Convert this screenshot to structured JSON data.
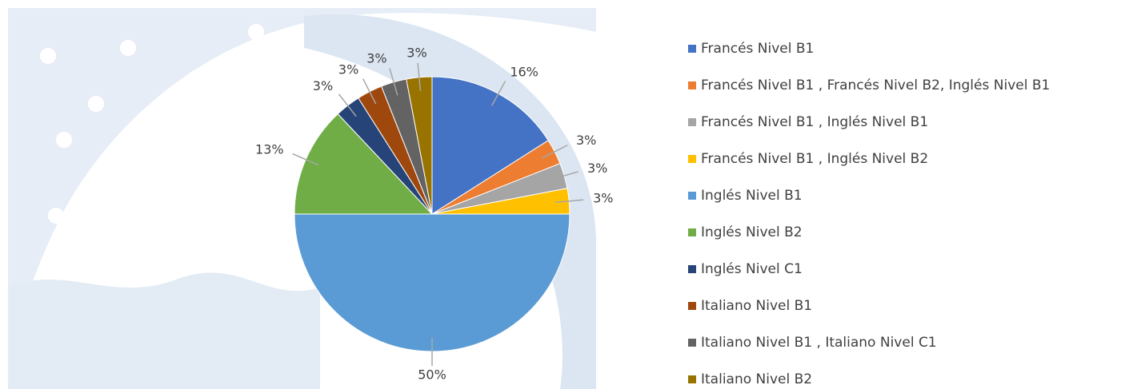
{
  "chart_data": {
    "type": "pie",
    "categories": [
      "Francés Nivel B1",
      "Francés Nivel B1 , Francés Nivel B2, Inglés Nivel B1",
      "Francés Nivel B1 , Inglés Nivel B1",
      "Francés Nivel B1 , Inglés Nivel B2",
      "Inglés Nivel B1",
      "Inglés Nivel B2",
      "Inglés Nivel C1",
      "Italiano Nivel B1",
      "Italiano Nivel B1 , Italiano Nivel C1",
      "Italiano Nivel B2"
    ],
    "values": [
      16,
      3,
      3,
      3,
      50,
      13,
      3,
      3,
      3,
      3
    ],
    "value_labels": [
      "16%",
      "3%",
      "3%",
      "3%",
      "50%",
      "13%",
      "3%",
      "3%",
      "3%",
      "3%"
    ],
    "colors": [
      "#4472c4",
      "#ed7d31",
      "#a5a5a5",
      "#ffc000",
      "#5b9bd5",
      "#70ad47",
      "#264478",
      "#9e480e",
      "#636363",
      "#997300"
    ],
    "legend": "right"
  }
}
